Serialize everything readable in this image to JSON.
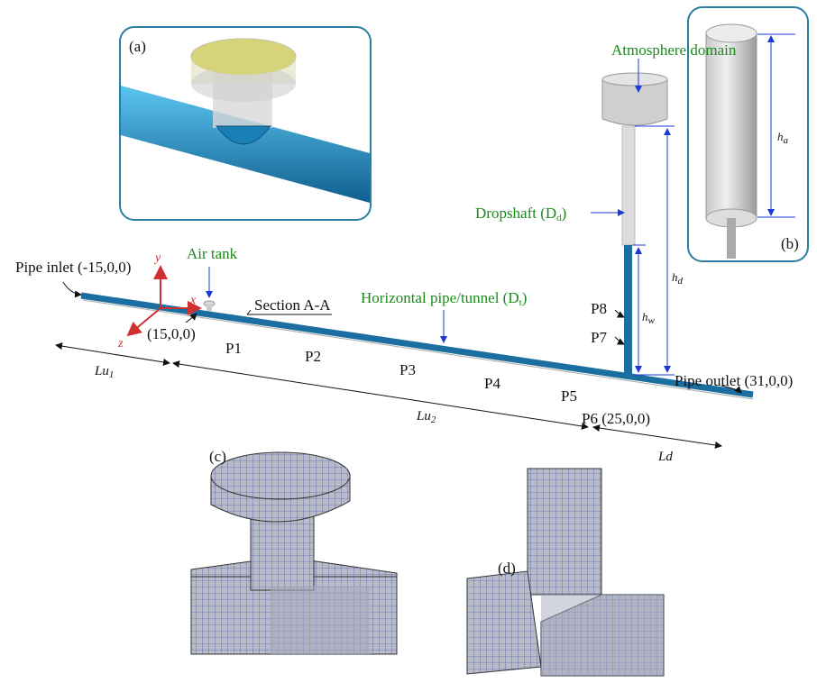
{
  "insets": {
    "a": "(a)",
    "b": "(b)",
    "c": "(c)",
    "d": "(d)"
  },
  "labels": {
    "atmosphere": "Atmosphere domain",
    "dropshaft": {
      "main": "Dropshaft (D",
      "sub": "d",
      "close": ")"
    },
    "pipe": {
      "main": "Horizontal pipe/tunnel (D",
      "sub": "t",
      "close": ")"
    },
    "air_tank": "Air tank",
    "inlet": "Pipe inlet (-15,0,0)",
    "section": "Section A-A",
    "origin": "(15,0,0)",
    "outlet": "Pipe outlet (31,0,0)",
    "p6": "P6 (25,0,0)"
  },
  "points": [
    "P1",
    "P2",
    "P3",
    "P4",
    "P5",
    "P7",
    "P8"
  ],
  "axes": {
    "x": "x",
    "y": "y",
    "z": "z"
  },
  "dimensions": {
    "lu1": {
      "main": "Lu",
      "sub": "1"
    },
    "lu2": {
      "main": "Lu",
      "sub": "2"
    },
    "ld": "Ld",
    "hd": {
      "main": "h",
      "sub": "d"
    },
    "hw": {
      "main": "h",
      "sub": "w"
    },
    "ha": {
      "main": "h",
      "sub": "a"
    }
  }
}
